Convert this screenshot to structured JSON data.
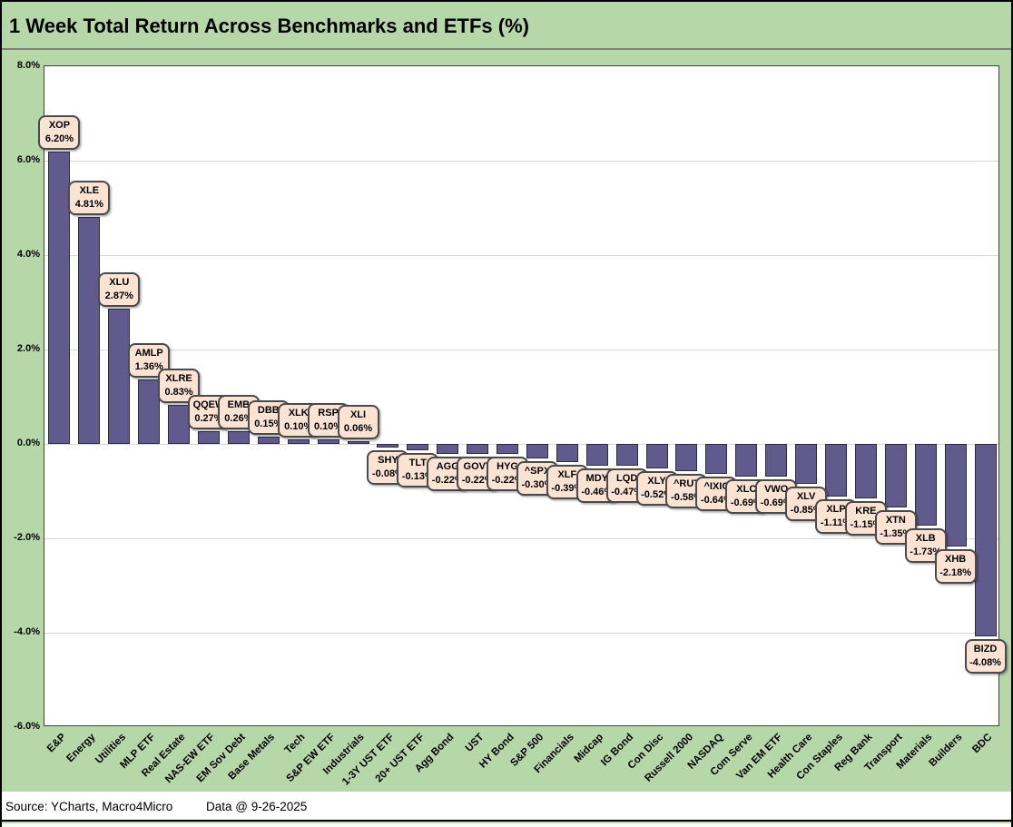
{
  "title": "1 Week Total Return Across Benchmarks and ETFs (%)",
  "footer": {
    "source": "Source: YCharts, Macro4Micro",
    "data_date": "Data @ 9-26-2025"
  },
  "colors": {
    "background_green": "#b6d7a8",
    "bar_fill": "#605b8c",
    "bar_border": "#2e2a45",
    "callout_bg": "#fbe3d3",
    "callout_border": "#4a4a4a",
    "gridline": "#d9d9d9",
    "plot_border": "#404040"
  },
  "chart_data": {
    "type": "bar",
    "title": "1 Week Total Return Across Benchmarks and ETFs (%)",
    "xlabel": "",
    "ylabel": "",
    "ylim": [
      -6,
      8
    ],
    "grid": true,
    "legend": "none",
    "y_ticks": [
      {
        "label": "8.0%",
        "value": 8
      },
      {
        "label": "6.0%",
        "value": 6
      },
      {
        "label": "4.0%",
        "value": 4
      },
      {
        "label": "2.0%",
        "value": 2
      },
      {
        "label": "0.0%",
        "value": 0
      },
      {
        "label": "-2.0%",
        "value": -2
      },
      {
        "label": "-4.0%",
        "value": -4
      },
      {
        "label": "-6.0%",
        "value": -6
      }
    ],
    "categories": [
      "E&P",
      "Energy",
      "Utilities",
      "MLP ETF",
      "Real Estate",
      "NAS-EW ETF",
      "EM Sov Debt",
      "Base Metals",
      "Tech",
      "S&P EW ETF",
      "Industrials",
      "1-3Y UST ETF",
      "20+ UST ETF",
      "Agg Bond",
      "UST",
      "HY Bond",
      "S&P 500",
      "Financials",
      "Midcap",
      "IG Bond",
      "Con Disc",
      "Russell 2000",
      "NASDAQ",
      "Com Serve",
      "Van EM ETF",
      "Health Care",
      "Con Staples",
      "Reg Bank",
      "Transport",
      "Materials",
      "Builders",
      "BDC"
    ],
    "tickers": [
      "XOP",
      "XLE",
      "XLU",
      "AMLP",
      "XLRE",
      "QQEW",
      "EMB",
      "DBB",
      "XLK",
      "RSP",
      "XLI",
      "SHY",
      "TLT",
      "AGG",
      "GOVT",
      "HYG",
      "^SPX",
      "XLF",
      "MDY",
      "LQD",
      "XLY",
      "^RUT",
      "^IXIC",
      "XLC",
      "VWO",
      "XLV",
      "XLP",
      "KRE",
      "XTN",
      "XLB",
      "XHB",
      "BIZD"
    ],
    "series": [
      {
        "name": "1 Week Total Return (%)",
        "values": [
          6.2,
          4.81,
          2.87,
          1.36,
          0.83,
          0.27,
          0.26,
          0.15,
          0.1,
          0.1,
          0.06,
          -0.08,
          -0.13,
          -0.22,
          -0.22,
          -0.22,
          -0.3,
          -0.39,
          -0.46,
          -0.47,
          -0.52,
          -0.58,
          -0.64,
          -0.69,
          -0.69,
          -0.85,
          -1.11,
          -1.15,
          -1.35,
          -1.73,
          -2.18,
          -4.08
        ]
      }
    ],
    "point_labels": [
      "6.20%",
      "4.81%",
      "2.87%",
      "1.36%",
      "0.83%",
      "0.27%",
      "0.26%",
      "0.15%",
      "0.10%",
      "0.10%",
      "0.06%",
      "-0.08%",
      "-0.13%",
      "-0.22%",
      "-0.22%",
      "-0.22%",
      "-0.30%",
      "-0.39%",
      "-0.46%",
      "-0.47%",
      "-0.52%",
      "-0.58%",
      "-0.64%",
      "-0.69%",
      "-0.69%",
      "-0.85%",
      "-1.11%",
      "-1.15%",
      "-1.35%",
      "-1.73%",
      "-2.18%",
      "-4.08%"
    ]
  }
}
